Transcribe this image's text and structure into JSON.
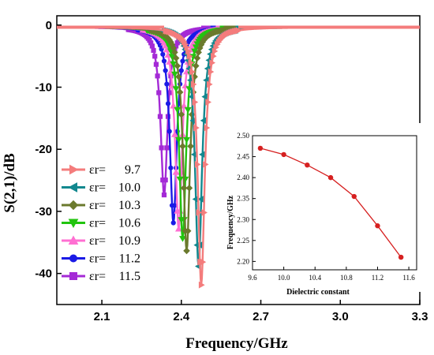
{
  "chart_data": [
    {
      "type": "line",
      "title": "",
      "xlabel": "Frequency/GHz",
      "ylabel": "S(2,1)/dB",
      "xlim": [
        1.93,
        3.3
      ],
      "ylim": [
        -45,
        1.5
      ],
      "xticks": [
        "2.1",
        "2.4",
        "2.7",
        "3.0",
        "3.3"
      ],
      "yticks": [
        "0",
        "-10",
        "-20",
        "-30",
        "-40"
      ],
      "grid": false,
      "legend_position": "bottom-left",
      "legend_symbol": "εr=",
      "series": [
        {
          "name": "9.7",
          "color": "#f47c7c",
          "marker": "triangle-right",
          "center": 2.475,
          "min_db": -41.5
        },
        {
          "name": "10.0",
          "color": "#12888f",
          "marker": "triangle-left",
          "center": 2.465,
          "min_db": -38.5
        },
        {
          "name": "10.3",
          "color": "#6b7a2d",
          "marker": "diamond",
          "center": 2.42,
          "min_db": -36.0
        },
        {
          "name": "10.6",
          "color": "#22c40f",
          "marker": "triangle-down",
          "center": 2.405,
          "min_db": -34.0
        },
        {
          "name": "10.9",
          "color": "#ff6fd2",
          "marker": "triangle-up",
          "center": 2.39,
          "min_db": -32.5
        },
        {
          "name": "11.2",
          "color": "#1a1ae6",
          "marker": "circle",
          "center": 2.37,
          "min_db": -31.5
        },
        {
          "name": "11.5",
          "color": "#a42ad6",
          "marker": "square",
          "center": 2.335,
          "min_db": -27.0
        }
      ]
    },
    {
      "type": "line",
      "title": "",
      "xlabel": "Dielectric constant",
      "ylabel": "Frequency/GHz",
      "xlim": [
        9.6,
        11.7
      ],
      "ylim": [
        2.18,
        2.5
      ],
      "xticks": [
        "9.6",
        "10.0",
        "10.4",
        "10.8",
        "11.2",
        "11.6"
      ],
      "yticks": [
        "2.50",
        "2.45",
        "2.40",
        "2.35",
        "2.30",
        "2.25",
        "2.20"
      ],
      "color": "#d62020",
      "x": [
        9.7,
        10.0,
        10.3,
        10.6,
        10.9,
        11.2,
        11.5
      ],
      "y": [
        2.47,
        2.455,
        2.43,
        2.4,
        2.355,
        2.285,
        2.21
      ]
    }
  ]
}
